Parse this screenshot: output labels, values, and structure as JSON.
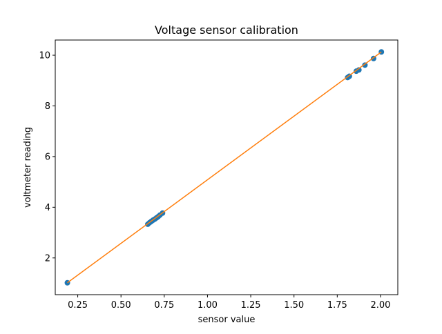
{
  "chart_data": {
    "type": "scatter",
    "title": "Voltage sensor calibration",
    "xlabel": "sensor value",
    "ylabel": "voltmeter reading",
    "xlim": [
      0.12,
      2.1
    ],
    "ylim": [
      0.55,
      10.6
    ],
    "xticks": [
      0.25,
      0.5,
      0.75,
      1.0,
      1.25,
      1.5,
      1.75,
      2.0
    ],
    "xtick_labels": [
      "0.25",
      "0.50",
      "0.75",
      "1.00",
      "1.25",
      "1.50",
      "1.75",
      "2.00"
    ],
    "yticks": [
      2,
      4,
      6,
      8,
      10
    ],
    "ytick_labels": [
      "2",
      "4",
      "6",
      "8",
      "10"
    ],
    "grid": false,
    "series": [
      {
        "kind": "scatter",
        "color": "#1f77b4",
        "points": [
          [
            0.19,
            1.02
          ],
          [
            0.655,
            3.33
          ],
          [
            0.665,
            3.39
          ],
          [
            0.675,
            3.44
          ],
          [
            0.685,
            3.49
          ],
          [
            0.695,
            3.53
          ],
          [
            0.705,
            3.58
          ],
          [
            0.715,
            3.63
          ],
          [
            0.725,
            3.69
          ],
          [
            0.74,
            3.77
          ],
          [
            1.81,
            9.12
          ],
          [
            1.82,
            9.17
          ],
          [
            1.86,
            9.37
          ],
          [
            1.875,
            9.42
          ],
          [
            1.91,
            9.61
          ],
          [
            1.96,
            9.87
          ],
          [
            2.005,
            10.13
          ]
        ]
      },
      {
        "kind": "line",
        "color": "#ff7f0e",
        "points": [
          [
            0.19,
            1.02
          ],
          [
            2.005,
            10.13
          ]
        ]
      }
    ]
  }
}
